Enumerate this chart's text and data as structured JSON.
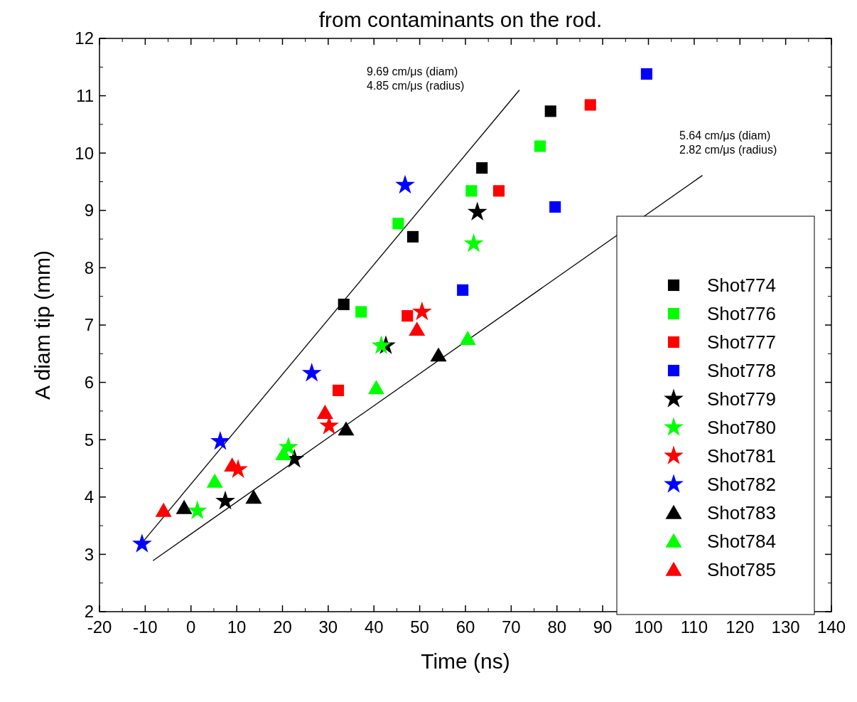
{
  "chart_data": {
    "type": "scatter",
    "title": "from contaminants on the rod.",
    "xlabel": "Time (ns)",
    "ylabel": "A diam tip (mm)",
    "xlim": [
      -20,
      140
    ],
    "xticks": [
      -20,
      -10,
      0,
      10,
      20,
      30,
      40,
      50,
      60,
      70,
      80,
      90,
      100,
      110,
      120,
      130,
      140
    ],
    "ylim": [
      2,
      12
    ],
    "yticks": [
      2,
      3,
      4,
      5,
      6,
      7,
      8,
      9,
      10,
      11,
      12
    ],
    "grid": false,
    "legend": "right",
    "annotations": [
      "9.69 cm/μs (diam)\n4.85 cm/μs (radius)",
      "5.64 cm/μs (diam)\n2.82 cm/μs (radius)"
    ],
    "series": [
      {
        "type": "line",
        "color": "#000000",
        "x": [
          -10.5,
          71.8
        ],
        "values": [
          3.22,
          11.1
        ]
      },
      {
        "type": "line",
        "color": "#000000",
        "x": [
          -8.3,
          111.8
        ],
        "values": [
          2.89,
          9.61
        ]
      },
      {
        "name": "Shot774",
        "color": "#000000",
        "marker": "square",
        "x": [
          33.4,
          48.5,
          63.6,
          78.6
        ],
        "values": [
          7.36,
          8.54,
          9.74,
          10.73
        ]
      },
      {
        "name": "Shot776",
        "color": "#00ff00",
        "marker": "square",
        "x": [
          37.2,
          45.3,
          61.3,
          76.3
        ],
        "values": [
          7.23,
          8.77,
          9.34,
          10.12
        ]
      },
      {
        "name": "Shot777",
        "color": "#ff0000",
        "marker": "square",
        "x": [
          32.2,
          47.3,
          67.3,
          87.3
        ],
        "values": [
          5.86,
          7.16,
          9.34,
          10.84
        ]
      },
      {
        "name": "Shot778",
        "color": "#0000ff",
        "marker": "square",
        "x": [
          59.4,
          79.6,
          99.6
        ],
        "values": [
          7.61,
          9.06,
          11.38
        ]
      },
      {
        "name": "Shot779",
        "color": "#000000",
        "marker": "star",
        "x": [
          7.5,
          22.6,
          42.6,
          62.6
        ],
        "values": [
          3.93,
          4.66,
          6.64,
          8.97
        ]
      },
      {
        "name": "Shot780",
        "color": "#00ff00",
        "marker": "star",
        "x": [
          1.4,
          21.3,
          41.6,
          61.8
        ],
        "values": [
          3.76,
          4.87,
          6.64,
          8.42
        ]
      },
      {
        "name": "Shot781",
        "color": "#ff0000",
        "marker": "star",
        "x": [
          10.3,
          30.2,
          50.5
        ],
        "values": [
          4.48,
          5.24,
          7.23
        ]
      },
      {
        "name": "Shot782",
        "color": "#0000ff",
        "marker": "star",
        "x": [
          -10.7,
          6.4,
          26.4,
          46.8
        ],
        "values": [
          3.18,
          4.97,
          6.16,
          9.44
        ]
      },
      {
        "name": "Shot783",
        "color": "#000000",
        "marker": "triangle",
        "x": [
          -1.5,
          13.7,
          33.9,
          54.1
        ],
        "values": [
          3.81,
          3.99,
          5.18,
          6.47
        ]
      },
      {
        "name": "Shot784",
        "color": "#00ff00",
        "marker": "triangle",
        "x": [
          5.2,
          20.2,
          40.5,
          60.5
        ],
        "values": [
          4.27,
          4.75,
          5.9,
          6.76
        ]
      },
      {
        "name": "Shot785",
        "color": "#ff0000",
        "marker": "triangle",
        "x": [
          -6.0,
          9.0,
          29.3,
          49.4
        ],
        "values": [
          3.76,
          4.55,
          5.47,
          6.92
        ]
      }
    ]
  }
}
